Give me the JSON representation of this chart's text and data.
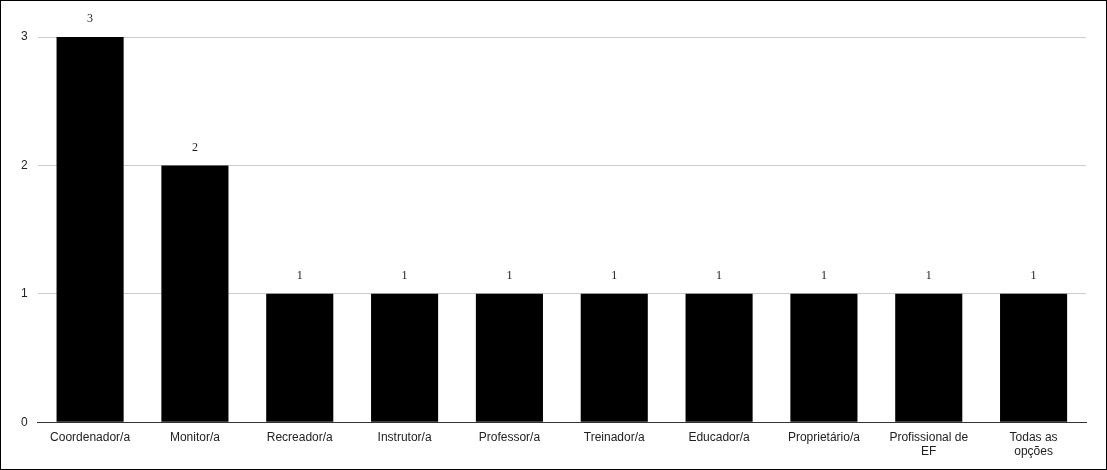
{
  "chart_data": {
    "type": "bar",
    "categories": [
      "Coordenador/a",
      "Monitor/a",
      "Recreador/a",
      "Instrutor/a",
      "Professor/a",
      "Treinador/a",
      "Educador/a",
      "Proprietário/a",
      "Profissional de EF",
      "Todas as opções"
    ],
    "values": [
      3,
      2,
      1,
      1,
      1,
      1,
      1,
      1,
      1,
      1
    ],
    "color": "#000000",
    "ylim": [
      0,
      3
    ],
    "yticks": [
      0,
      1,
      2,
      3
    ],
    "grid": "y",
    "data_labels": true,
    "legend": false
  }
}
